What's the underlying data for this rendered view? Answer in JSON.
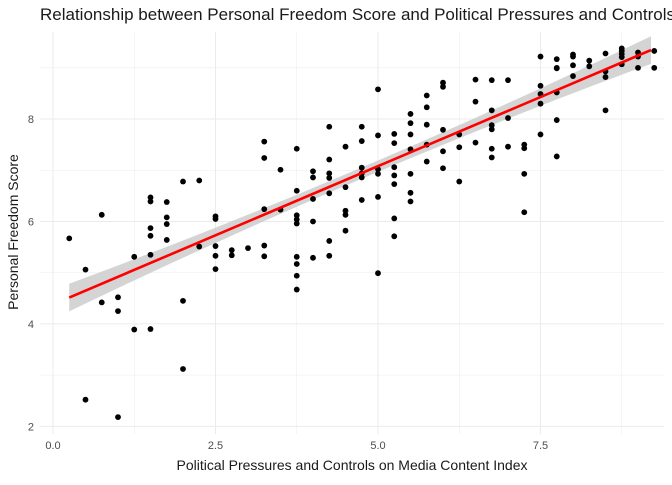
{
  "chart_data": {
    "type": "scatter",
    "title": "Relationship between Personal Freedom Score and Political Pressures and Controls on Media Content Index",
    "xlabel": "Political Pressures and Controls on Media Content Index",
    "ylabel": "Personal Freedom Score",
    "xlim": [
      -0.2,
      9.4
    ],
    "ylim": [
      1.85,
      9.7
    ],
    "x_ticks": [
      0.0,
      2.5,
      5.0,
      7.5
    ],
    "x_tick_labels": [
      "0.0",
      "2.5",
      "5.0",
      "7.5"
    ],
    "y_ticks": [
      2,
      4,
      6,
      8
    ],
    "y_tick_labels": [
      "2",
      "4",
      "6",
      "8"
    ],
    "grid": true,
    "legend": "none",
    "colors": {
      "points": "#000000",
      "fit_line": "#ff0000",
      "confidence_band": "#cccccc",
      "grid": "#ebebeb",
      "text": "#1a1a1a",
      "tick_text": "#4d4d4d"
    },
    "regression": {
      "intercept": 4.38,
      "slope": 0.54,
      "x_range": [
        0.25,
        9.2
      ],
      "ci_halfwidth_ends": 0.27,
      "ci_halfwidth_center": 0.11
    },
    "points": [
      [
        0.25,
        5.67
      ],
      [
        0.5,
        5.06
      ],
      [
        0.5,
        2.52
      ],
      [
        0.75,
        6.13
      ],
      [
        0.75,
        4.42
      ],
      [
        1.0,
        4.52
      ],
      [
        1.0,
        4.25
      ],
      [
        1.0,
        2.18
      ],
      [
        1.25,
        5.31
      ],
      [
        1.25,
        3.89
      ],
      [
        1.5,
        6.47
      ],
      [
        1.5,
        6.39
      ],
      [
        1.5,
        5.87
      ],
      [
        1.5,
        5.72
      ],
      [
        1.5,
        5.35
      ],
      [
        1.5,
        3.9
      ],
      [
        1.75,
        6.38
      ],
      [
        1.75,
        6.08
      ],
      [
        1.75,
        5.95
      ],
      [
        1.75,
        5.64
      ],
      [
        2.0,
        6.78
      ],
      [
        2.0,
        4.45
      ],
      [
        2.0,
        3.12
      ],
      [
        2.25,
        6.8
      ],
      [
        2.25,
        5.51
      ],
      [
        2.5,
        6.1
      ],
      [
        2.5,
        6.05
      ],
      [
        2.5,
        5.52
      ],
      [
        2.5,
        5.33
      ],
      [
        2.5,
        5.07
      ],
      [
        2.75,
        5.44
      ],
      [
        2.75,
        5.34
      ],
      [
        3.0,
        5.48
      ],
      [
        3.25,
        7.56
      ],
      [
        3.25,
        7.24
      ],
      [
        3.25,
        6.24
      ],
      [
        3.25,
        5.53
      ],
      [
        3.25,
        5.32
      ],
      [
        3.5,
        7.01
      ],
      [
        3.5,
        6.23
      ],
      [
        3.75,
        7.42
      ],
      [
        3.75,
        6.6
      ],
      [
        3.75,
        6.12
      ],
      [
        3.75,
        6.04
      ],
      [
        3.75,
        5.96
      ],
      [
        3.75,
        5.31
      ],
      [
        3.75,
        5.17
      ],
      [
        3.75,
        4.94
      ],
      [
        3.75,
        4.67
      ],
      [
        4.0,
        6.98
      ],
      [
        4.0,
        6.86
      ],
      [
        4.0,
        6.44
      ],
      [
        4.0,
        6.0
      ],
      [
        4.0,
        5.29
      ],
      [
        4.25,
        7.85
      ],
      [
        4.25,
        7.21
      ],
      [
        4.25,
        6.94
      ],
      [
        4.25,
        6.85
      ],
      [
        4.25,
        6.55
      ],
      [
        4.25,
        5.62
      ],
      [
        4.25,
        5.33
      ],
      [
        4.5,
        7.46
      ],
      [
        4.5,
        6.67
      ],
      [
        4.5,
        6.21
      ],
      [
        4.5,
        6.13
      ],
      [
        4.5,
        5.82
      ],
      [
        4.75,
        7.85
      ],
      [
        4.75,
        7.57
      ],
      [
        4.75,
        7.05
      ],
      [
        4.75,
        6.94
      ],
      [
        4.75,
        6.86
      ],
      [
        4.75,
        6.42
      ],
      [
        5.0,
        8.58
      ],
      [
        5.0,
        7.68
      ],
      [
        5.0,
        7.02
      ],
      [
        5.0,
        6.93
      ],
      [
        5.0,
        6.48
      ],
      [
        5.0,
        4.99
      ],
      [
        5.25,
        7.71
      ],
      [
        5.25,
        7.53
      ],
      [
        5.25,
        7.06
      ],
      [
        5.25,
        6.9
      ],
      [
        5.25,
        6.73
      ],
      [
        5.25,
        6.06
      ],
      [
        5.25,
        5.71
      ],
      [
        5.5,
        8.1
      ],
      [
        5.5,
        7.92
      ],
      [
        5.5,
        7.7
      ],
      [
        5.5,
        7.41
      ],
      [
        5.5,
        6.93
      ],
      [
        5.5,
        6.56
      ],
      [
        5.5,
        6.39
      ],
      [
        5.75,
        8.46
      ],
      [
        5.75,
        8.23
      ],
      [
        5.75,
        7.89
      ],
      [
        5.75,
        7.5
      ],
      [
        5.75,
        7.17
      ],
      [
        6.0,
        8.71
      ],
      [
        6.0,
        8.63
      ],
      [
        6.0,
        7.79
      ],
      [
        6.0,
        7.37
      ],
      [
        6.0,
        7.04
      ],
      [
        6.25,
        7.7
      ],
      [
        6.25,
        7.45
      ],
      [
        6.25,
        6.78
      ],
      [
        6.5,
        8.77
      ],
      [
        6.5,
        8.34
      ],
      [
        6.5,
        7.54
      ],
      [
        6.75,
        8.76
      ],
      [
        6.75,
        8.17
      ],
      [
        6.75,
        7.88
      ],
      [
        6.75,
        7.8
      ],
      [
        6.75,
        7.42
      ],
      [
        6.75,
        7.25
      ],
      [
        7.0,
        8.76
      ],
      [
        7.0,
        8.02
      ],
      [
        7.0,
        7.46
      ],
      [
        7.25,
        7.5
      ],
      [
        7.25,
        7.43
      ],
      [
        7.25,
        6.93
      ],
      [
        7.25,
        6.18
      ],
      [
        7.5,
        9.22
      ],
      [
        7.5,
        8.65
      ],
      [
        7.5,
        8.49
      ],
      [
        7.5,
        8.3
      ],
      [
        7.5,
        7.7
      ],
      [
        7.75,
        9.17
      ],
      [
        7.75,
        9.0
      ],
      [
        7.75,
        8.99
      ],
      [
        7.75,
        8.52
      ],
      [
        7.75,
        7.98
      ],
      [
        7.75,
        7.27
      ],
      [
        8.0,
        9.26
      ],
      [
        8.0,
        9.22
      ],
      [
        8.0,
        9.05
      ],
      [
        8.0,
        8.84
      ],
      [
        8.25,
        9.14
      ],
      [
        8.25,
        9.03
      ],
      [
        8.5,
        9.28
      ],
      [
        8.5,
        8.93
      ],
      [
        8.5,
        8.82
      ],
      [
        8.5,
        8.17
      ],
      [
        8.75,
        9.38
      ],
      [
        8.75,
        9.33
      ],
      [
        8.75,
        9.27
      ],
      [
        8.75,
        9.21
      ],
      [
        8.75,
        9.07
      ],
      [
        9.0,
        9.3
      ],
      [
        9.0,
        9.22
      ],
      [
        9.0,
        9.0
      ],
      [
        9.25,
        9.33
      ],
      [
        9.25,
        9.0
      ]
    ]
  }
}
